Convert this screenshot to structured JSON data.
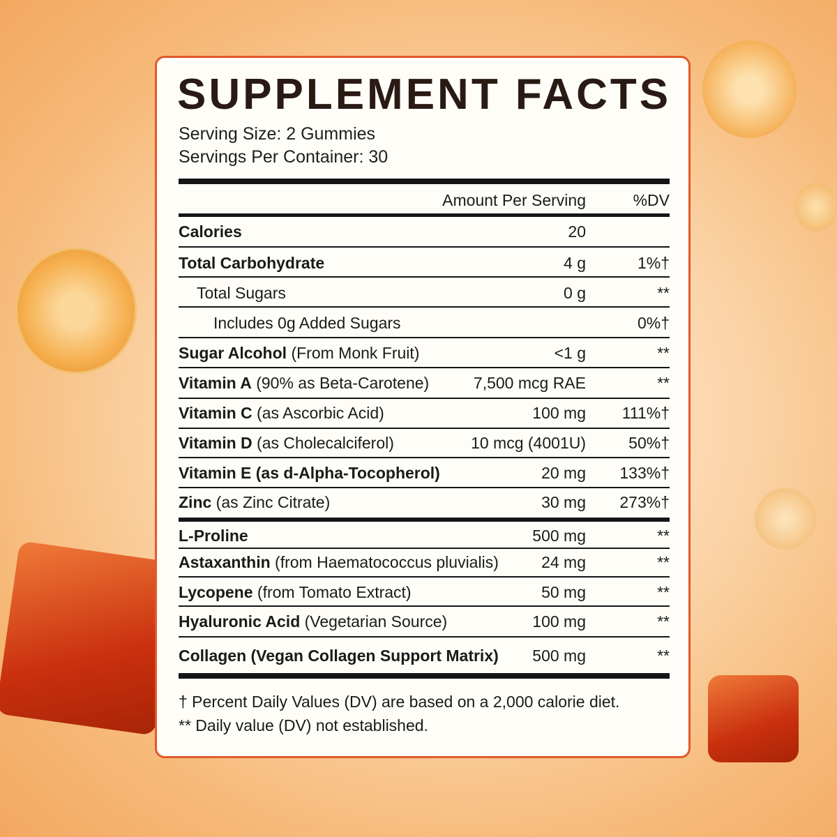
{
  "title": "SUPPLEMENT FACTS",
  "serving_size": "Serving Size: 2 Gummies",
  "servings_per_container": "Servings Per Container: 30",
  "table": {
    "header": {
      "amount": "Amount Per Serving",
      "dv": "%DV"
    },
    "rows": [
      {
        "name": "Calories",
        "amount": "20"
      },
      {
        "name": "Total Carbohydrate",
        "amount": "4 g",
        "dv": "1%†"
      },
      {
        "name": "Total Sugars",
        "amount": "0 g",
        "dv": "**"
      },
      {
        "name": "Includes 0g Added Sugars",
        "dv": "0%†"
      },
      {
        "name": "Sugar Alcohol",
        "detail": "(From Monk Fruit)",
        "amount": "<1 g",
        "dv": "**"
      },
      {
        "name": "Vitamin A",
        "detail": "(90% as Beta-Carotene)",
        "amount": "7,500 mcg RAE",
        "dv": "**"
      },
      {
        "name": "Vitamin C",
        "detail": "(as Ascorbic Acid)",
        "amount": "100 mg",
        "dv": "111%†"
      },
      {
        "name": "Vitamin D",
        "detail": "(as Cholecalciferol)",
        "amount": "10 mcg (4001U)",
        "dv": "50%†"
      },
      {
        "name": "Vitamin E (as d-Alpha-Tocopherol)",
        "amount": "20 mg",
        "dv": "133%†"
      },
      {
        "name": "Zinc",
        "detail": "(as Zinc Citrate)",
        "amount": "30 mg",
        "dv": "273%†"
      },
      {
        "name": "L-Proline",
        "amount": "500 mg",
        "dv": "**"
      },
      {
        "name": "Astaxanthin",
        "detail": "(from Haematococcus pluvialis)",
        "amount": "24 mg",
        "dv": "**"
      },
      {
        "name": "Lycopene",
        "detail": "(from Tomato Extract)",
        "amount": "50 mg",
        "dv": "**"
      },
      {
        "name": "Hyaluronic Acid",
        "detail": "(Vegetarian Source)",
        "amount": "100 mg",
        "dv": "**"
      },
      {
        "name": "Collagen (Vegan Collagen Support Matrix)",
        "amount": "500 mg",
        "dv": "**"
      }
    ]
  },
  "footnotes": [
    "† Percent Daily Values (DV) are based on a 2,000 calorie diet.",
    "** Daily value (DV) not established."
  ]
}
